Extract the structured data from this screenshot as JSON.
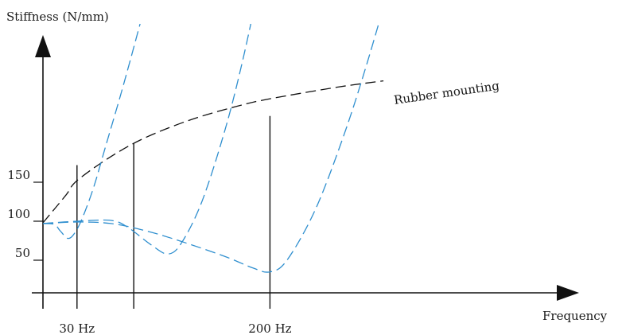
{
  "chart_data": {
    "type": "line",
    "ylabel": "Stiffness (N/mm)",
    "xlabel": "Frequency",
    "y_ticks": [
      {
        "value": 150,
        "label": "150"
      },
      {
        "value": 100,
        "label": "100"
      },
      {
        "value": 50,
        "label": "50"
      }
    ],
    "x_ticks": [
      {
        "value": 30,
        "label": "30 Hz"
      },
      {
        "value": 200,
        "label": "200 Hz"
      }
    ],
    "grid": false,
    "legend": "none",
    "colors": {
      "axis": "#111111",
      "rubber": "#111111",
      "resonance": "#2f8fcf"
    },
    "frequency_markers": [
      {
        "x": 30,
        "label": "30 Hz"
      },
      {
        "x": 80,
        "label": ""
      },
      {
        "x": 200,
        "label": "200 Hz"
      }
    ],
    "series": [
      {
        "name": "Rubber mounting",
        "color": "#111111",
        "points": [
          [
            0,
            98
          ],
          [
            20,
            133
          ],
          [
            30,
            152
          ],
          [
            60,
            183
          ],
          [
            90,
            207
          ],
          [
            130,
            230
          ],
          [
            170,
            247
          ],
          [
            200,
            257
          ],
          [
            260,
            272
          ],
          [
            300,
            280
          ]
        ]
      },
      {
        "name": "",
        "color": "#2f8fcf",
        "points": [
          [
            0,
            97
          ],
          [
            10,
            96
          ],
          [
            15,
            88
          ],
          [
            22,
            78
          ],
          [
            28,
            85
          ],
          [
            35,
            105
          ],
          [
            45,
            145
          ],
          [
            55,
            195
          ],
          [
            70,
            270
          ],
          [
            85,
            350
          ],
          [
            105,
            460
          ]
        ]
      },
      {
        "name": "",
        "color": "#2f8fcf",
        "points": [
          [
            0,
            97
          ],
          [
            30,
            100
          ],
          [
            60,
            101
          ],
          [
            75,
            92
          ],
          [
            95,
            70
          ],
          [
            110,
            58
          ],
          [
            122,
            72
          ],
          [
            140,
            125
          ],
          [
            160,
            215
          ],
          [
            175,
            300
          ],
          [
            190,
            400
          ]
        ]
      },
      {
        "name": "",
        "color": "#2f8fcf",
        "points": [
          [
            0,
            97
          ],
          [
            30,
            99
          ],
          [
            60,
            97
          ],
          [
            90,
            88
          ],
          [
            120,
            75
          ],
          [
            160,
            55
          ],
          [
            185,
            40
          ],
          [
            200,
            35
          ],
          [
            215,
            50
          ],
          [
            240,
            115
          ],
          [
            265,
            210
          ],
          [
            285,
            300
          ],
          [
            305,
            400
          ]
        ]
      }
    ]
  }
}
